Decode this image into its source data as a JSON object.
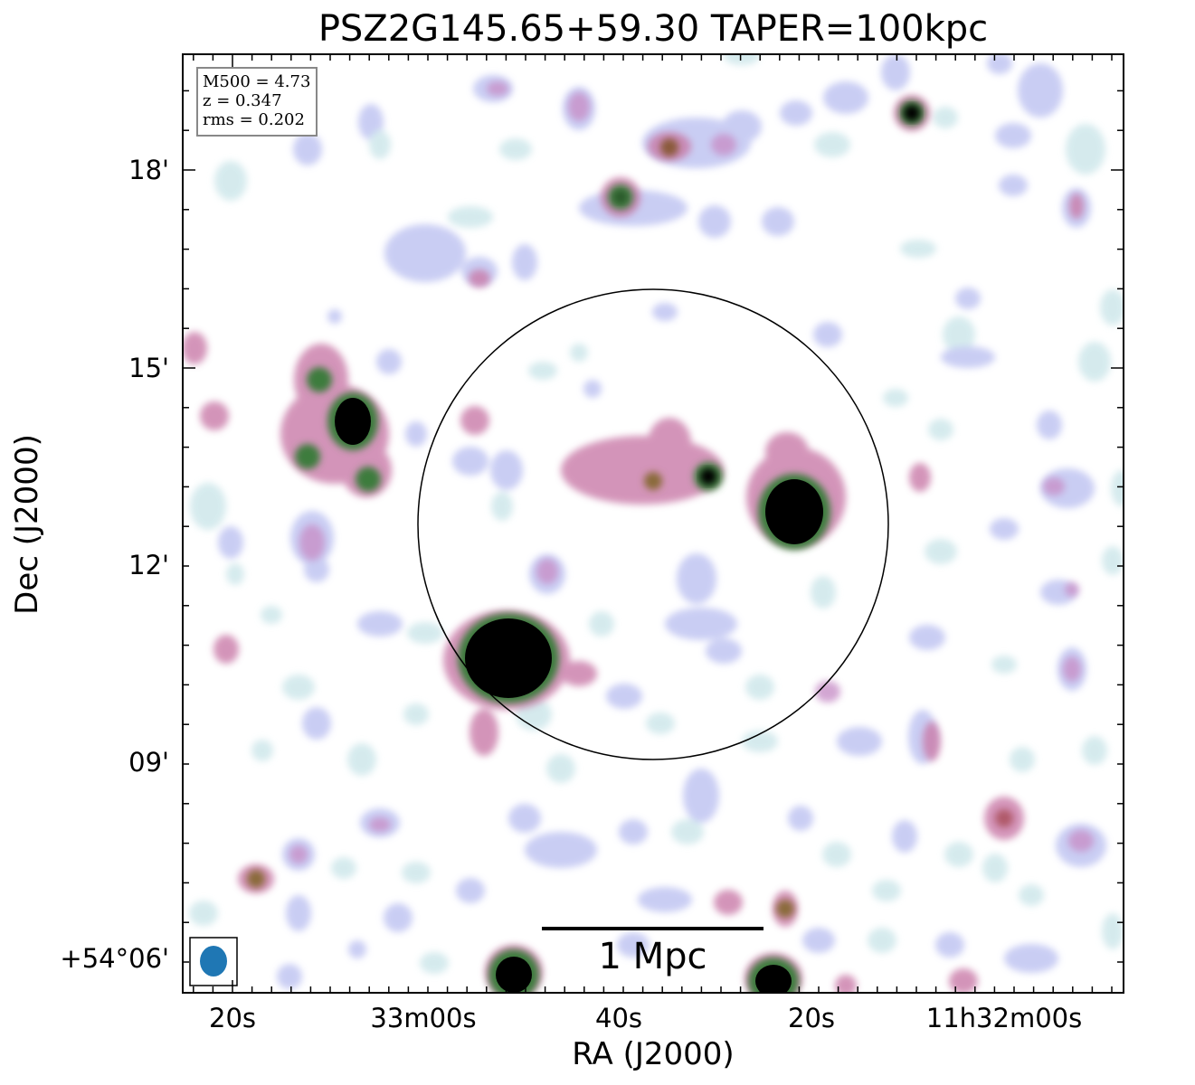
{
  "title": "PSZ2G145.65+59.30 TAPER=100kpc",
  "axes": {
    "xlabel": "RA (J2000)",
    "ylabel": "Dec (J2000)",
    "xticks": [
      "20s",
      "33m00s",
      "40s",
      "20s",
      "11h32m00s"
    ],
    "yticks": [
      "18'",
      "15'",
      "12'",
      "09'",
      "+54°06'"
    ]
  },
  "info": {
    "m500": "M500 = 4.73",
    "z": "z = 0.347",
    "rms": "rms = 0.202"
  },
  "scalebar": {
    "label": "1 Mpc"
  },
  "colors": {
    "background": "#ffffff",
    "beam": "#1f77b4",
    "faint": "#b8bdf0",
    "mid": "#c97aa8",
    "bright": "#3c7c3c",
    "core": "#000000"
  }
}
